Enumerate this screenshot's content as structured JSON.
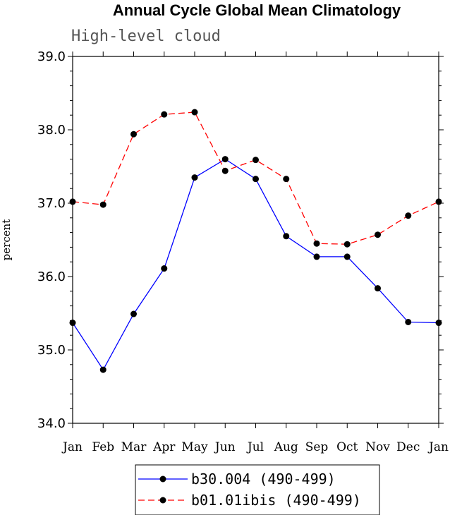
{
  "chart_data": {
    "type": "line",
    "title": "Annual Cycle Global Mean Climatology",
    "subtitle": "High-level cloud",
    "ylabel": "percent",
    "xlabel": "",
    "ylim": [
      34.0,
      39.0
    ],
    "yticks": [
      "34.0",
      "35.0",
      "36.0",
      "37.0",
      "38.0",
      "39.0"
    ],
    "categories": [
      "Jan",
      "Feb",
      "Mar",
      "Apr",
      "May",
      "Jun",
      "Jul",
      "Aug",
      "Sep",
      "Oct",
      "Nov",
      "Dec",
      "Jan"
    ],
    "grid": false,
    "legend_position": "bottom",
    "series": [
      {
        "name": "b30.004 (490-499)",
        "color": "#0000ff",
        "dash": "solid",
        "values": [
          35.37,
          34.73,
          35.49,
          36.11,
          37.35,
          37.6,
          37.33,
          36.55,
          36.27,
          36.27,
          35.84,
          35.38,
          35.37
        ]
      },
      {
        "name": "b01.01ibis (490-499)",
        "color": "#ff0000",
        "dash": "dashed",
        "values": [
          37.02,
          36.98,
          37.94,
          38.21,
          38.24,
          37.44,
          37.59,
          37.33,
          36.45,
          36.44,
          36.57,
          36.83,
          37.02
        ]
      }
    ]
  }
}
